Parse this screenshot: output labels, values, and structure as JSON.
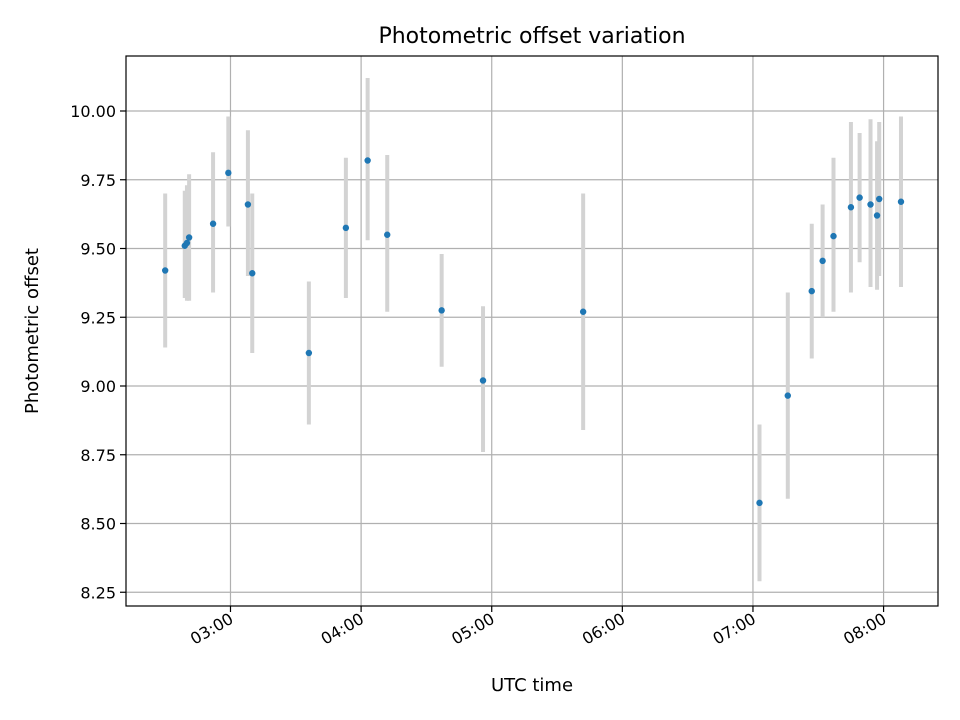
{
  "chart_data": {
    "type": "scatter",
    "title": "Photometric offset variation",
    "xlabel": "UTC time",
    "ylabel": "Photometric offset",
    "x_ticks": [
      "03:00",
      "04:00",
      "05:00",
      "06:00",
      "07:00",
      "08:00"
    ],
    "y_ticks": [
      "8.25",
      "8.50",
      "8.75",
      "9.00",
      "9.25",
      "9.50",
      "9.75",
      "10.00"
    ],
    "xlim": [
      "02:12",
      "08:25"
    ],
    "ylim": [
      8.2,
      10.2
    ],
    "grid": true,
    "legend": "none",
    "colors": {
      "points": "#1f77b4",
      "error_bars": "#d3d3d3"
    },
    "points": [
      {
        "x": "02:30",
        "y": 9.42,
        "low": 9.14,
        "high": 9.7
      },
      {
        "x": "02:39",
        "y": 9.51,
        "low": 9.32,
        "high": 9.71
      },
      {
        "x": "02:40",
        "y": 9.52,
        "low": 9.31,
        "high": 9.73
      },
      {
        "x": "02:41",
        "y": 9.54,
        "low": 9.31,
        "high": 9.77
      },
      {
        "x": "02:52",
        "y": 9.59,
        "low": 9.34,
        "high": 9.85
      },
      {
        "x": "02:59",
        "y": 9.775,
        "low": 9.58,
        "high": 9.98
      },
      {
        "x": "03:08",
        "y": 9.66,
        "low": 9.4,
        "high": 9.93
      },
      {
        "x": "03:10",
        "y": 9.41,
        "low": 9.12,
        "high": 9.7
      },
      {
        "x": "03:36",
        "y": 9.12,
        "low": 8.86,
        "high": 9.38
      },
      {
        "x": "03:53",
        "y": 9.575,
        "low": 9.32,
        "high": 9.83
      },
      {
        "x": "04:03",
        "y": 9.82,
        "low": 9.53,
        "high": 10.12
      },
      {
        "x": "04:12",
        "y": 9.55,
        "low": 9.27,
        "high": 9.84
      },
      {
        "x": "04:37",
        "y": 9.275,
        "low": 9.07,
        "high": 9.48
      },
      {
        "x": "04:56",
        "y": 9.02,
        "low": 8.76,
        "high": 9.29
      },
      {
        "x": "05:42",
        "y": 9.27,
        "low": 8.84,
        "high": 9.7
      },
      {
        "x": "07:03",
        "y": 8.575,
        "low": 8.29,
        "high": 8.86
      },
      {
        "x": "07:16",
        "y": 8.965,
        "low": 8.59,
        "high": 9.34
      },
      {
        "x": "07:27",
        "y": 9.345,
        "low": 9.1,
        "high": 9.59
      },
      {
        "x": "07:32",
        "y": 9.455,
        "low": 9.25,
        "high": 9.66
      },
      {
        "x": "07:37",
        "y": 9.545,
        "low": 9.27,
        "high": 9.83
      },
      {
        "x": "07:45",
        "y": 9.65,
        "low": 9.34,
        "high": 9.96
      },
      {
        "x": "07:49",
        "y": 9.685,
        "low": 9.45,
        "high": 9.92
      },
      {
        "x": "07:54",
        "y": 9.66,
        "low": 9.36,
        "high": 9.97
      },
      {
        "x": "07:57",
        "y": 9.62,
        "low": 9.35,
        "high": 9.89
      },
      {
        "x": "07:58",
        "y": 9.68,
        "low": 9.4,
        "high": 9.96
      },
      {
        "x": "08:08",
        "y": 9.67,
        "low": 9.36,
        "high": 9.98
      }
    ]
  }
}
